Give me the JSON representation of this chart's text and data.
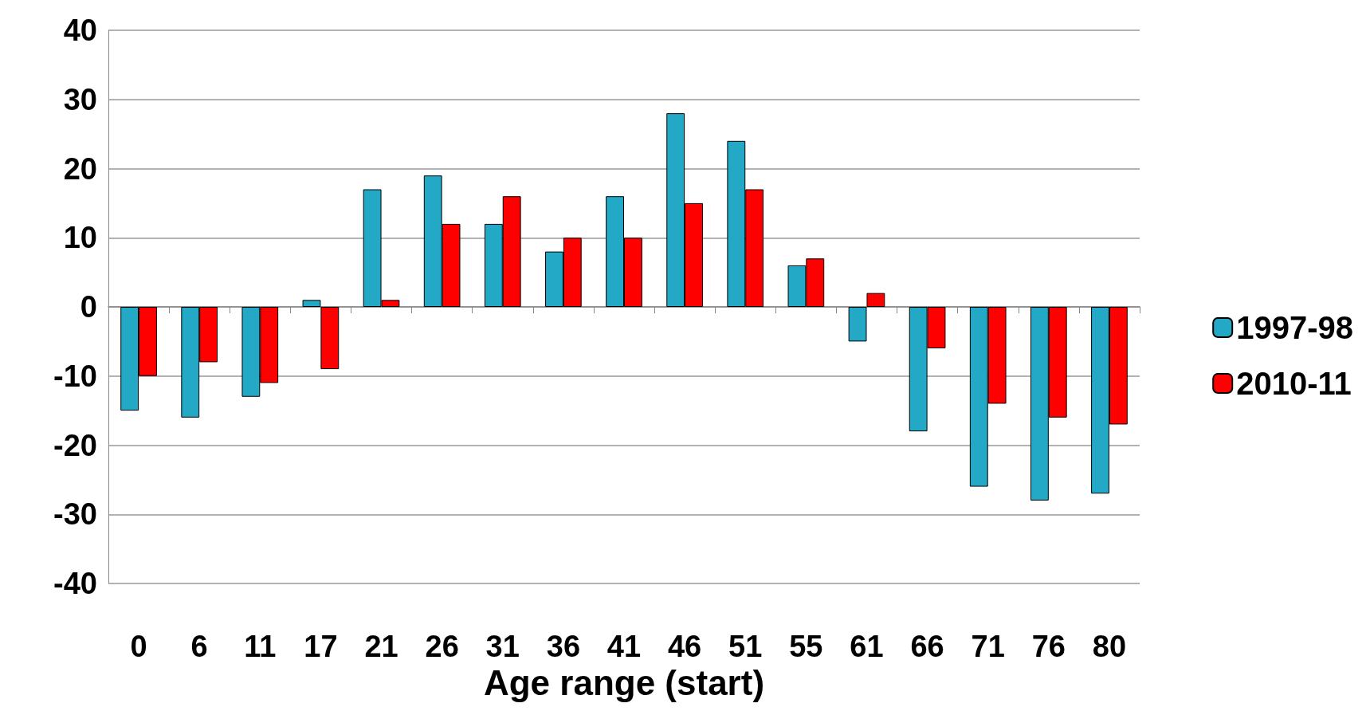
{
  "chart_data": {
    "type": "bar",
    "xlabel": "Age range (start)",
    "categories": [
      "0",
      "6",
      "11",
      "17",
      "21",
      "26",
      "31",
      "36",
      "41",
      "46",
      "51",
      "55",
      "61",
      "66",
      "71",
      "76",
      "80"
    ],
    "series": [
      {
        "name": "1997-98",
        "color": "#23a9c5",
        "values": [
          -15,
          -16,
          -13,
          1,
          17,
          19,
          12,
          8,
          16,
          28,
          24,
          6,
          -5,
          -18,
          -26,
          -28,
          -27
        ]
      },
      {
        "name": "2010-11",
        "color": "#ff0000",
        "values": [
          -10,
          -8,
          -11,
          -9,
          1,
          12,
          16,
          10,
          10,
          15,
          17,
          7,
          2,
          -6,
          -14,
          -16,
          -17
        ]
      }
    ],
    "ylim": [
      -40,
      40
    ],
    "yticks": [
      -40,
      -30,
      -20,
      -10,
      0,
      10,
      20,
      30,
      40
    ],
    "grid": "y",
    "legend": "right"
  }
}
